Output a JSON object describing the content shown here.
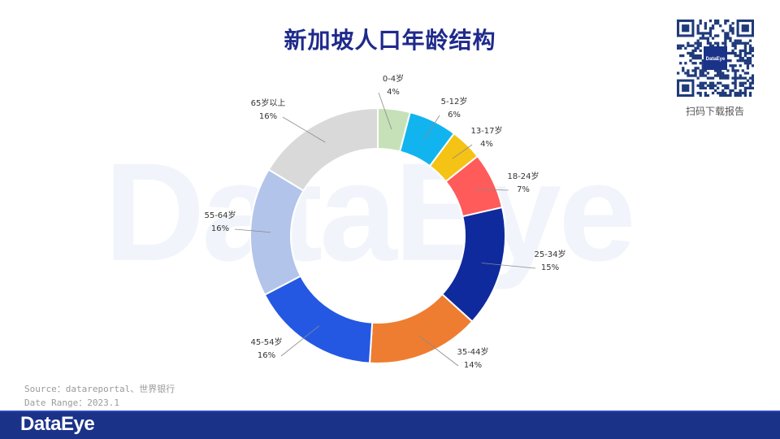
{
  "title": "新加坡人口年龄结构",
  "watermark": "DataEye",
  "qr_caption": "扫码下载报告",
  "qr_logo_text": "DataEye",
  "source_line": "Source：datareportal、世界银行",
  "date_line": "Date Range：2023.1",
  "footer_logo": "DataEye",
  "chart_data": {
    "type": "donut",
    "slices": [
      {
        "label": "0-4岁",
        "value": 4,
        "pct_text": "4%",
        "color": "#c6e1b8"
      },
      {
        "label": "5-12岁",
        "value": 6,
        "pct_text": "6%",
        "color": "#12b4ef"
      },
      {
        "label": "13-17岁",
        "value": 4,
        "pct_text": "4%",
        "color": "#f4c315"
      },
      {
        "label": "18-24岁",
        "value": 7,
        "pct_text": "7%",
        "color": "#ff5b5b"
      },
      {
        "label": "25-34岁",
        "value": 15,
        "pct_text": "15%",
        "color": "#0f2a9c"
      },
      {
        "label": "35-44岁",
        "value": 14,
        "pct_text": "14%",
        "color": "#ee7d31"
      },
      {
        "label": "45-54岁",
        "value": 16,
        "pct_text": "16%",
        "color": "#2458e3"
      },
      {
        "label": "55-64岁",
        "value": 16,
        "pct_text": "16%",
        "color": "#b2c4ea"
      },
      {
        "label": "65岁以上",
        "value": 16,
        "pct_text": "16%",
        "color": "#d9d9d9"
      }
    ]
  }
}
